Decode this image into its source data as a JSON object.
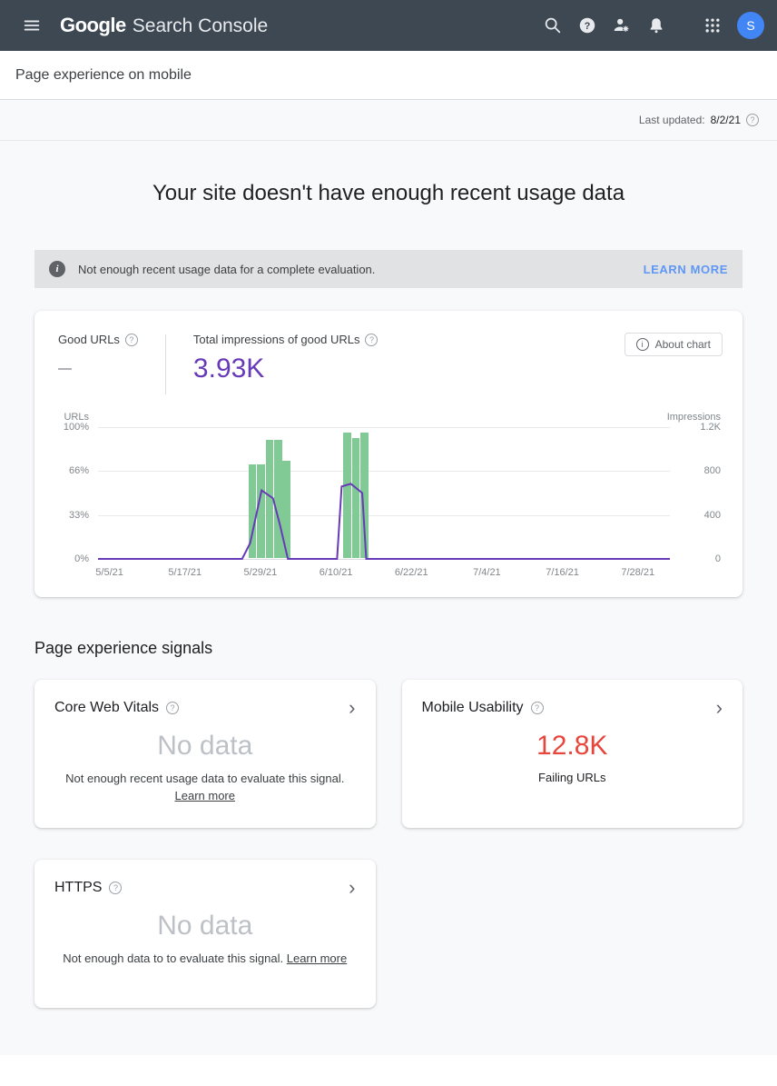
{
  "appbar": {
    "logo_primary": "Google",
    "logo_secondary": "Search Console",
    "avatar_initial": "S"
  },
  "breadcrumb": {
    "title": "Page experience on mobile"
  },
  "meta": {
    "last_updated_label": "Last updated:",
    "last_updated_date": "8/2/21"
  },
  "main": {
    "headline": "Your site doesn't have enough recent usage data",
    "banner": {
      "message": "Not enough recent usage data for a complete evaluation.",
      "action_label": "LEARN MORE"
    },
    "signals_heading": "Page experience signals"
  },
  "chart_card": {
    "good_urls_label": "Good URLs",
    "good_urls_value": "—",
    "impressions_label": "Total impressions of good URLs",
    "impressions_value": "3.93K",
    "about_chart_label": "About chart"
  },
  "chart_data": {
    "type": "bar+line",
    "title": "Good URLs percentage (bars) and impressions of good URLs (line) over time",
    "x_ticks": [
      "5/5/21",
      "5/17/21",
      "5/29/21",
      "6/10/21",
      "6/22/21",
      "7/4/21",
      "7/16/21",
      "7/28/21"
    ],
    "x_tick_positions_pct": [
      2,
      15.2,
      28.4,
      41.6,
      54.8,
      68,
      81.2,
      94.4
    ],
    "left_axis": {
      "title": "URLs",
      "ticks": [
        "100%",
        "66%",
        "33%",
        "0%"
      ],
      "range": [
        0,
        100
      ]
    },
    "right_axis": {
      "title": "Impressions",
      "ticks": [
        "1.2K",
        "800",
        "400",
        "0"
      ],
      "range": [
        0,
        1200
      ]
    },
    "bar_series": {
      "name": "Good URLs (% of URLs)",
      "color": "#81c995",
      "points": [
        {
          "x_pct": 26.3,
          "value_pct": 71
        },
        {
          "x_pct": 27.8,
          "value_pct": 71
        },
        {
          "x_pct": 29.3,
          "value_pct": 90
        },
        {
          "x_pct": 30.8,
          "value_pct": 90
        },
        {
          "x_pct": 32.3,
          "value_pct": 74
        },
        {
          "x_pct": 42.9,
          "value_pct": 95
        },
        {
          "x_pct": 44.4,
          "value_pct": 91
        },
        {
          "x_pct": 45.9,
          "value_pct": 95
        }
      ]
    },
    "line_series": {
      "name": "Impressions of good URLs",
      "color": "#673ab7",
      "points_pct": [
        [
          0,
          0
        ],
        [
          25.2,
          0
        ],
        [
          26.6,
          12
        ],
        [
          28.6,
          52
        ],
        [
          30.6,
          46
        ],
        [
          31.8,
          26
        ],
        [
          33.2,
          0
        ],
        [
          41.8,
          0
        ],
        [
          42.6,
          55
        ],
        [
          44.2,
          57
        ],
        [
          46.2,
          50
        ],
        [
          46.9,
          0
        ],
        [
          100,
          0
        ]
      ]
    },
    "legend_position": "none",
    "grid": true
  },
  "signals": {
    "cards": [
      {
        "title": "Core Web Vitals",
        "value": "No data",
        "value_color": "#bdc1c6",
        "description": "Not enough recent usage data to evaluate this signal.",
        "link_label": "Learn more"
      },
      {
        "title": "Mobile Usability",
        "value": "12.8K",
        "value_color": "#e8453c",
        "description": "Failing URLs"
      },
      {
        "title": "HTTPS",
        "value": "No data",
        "value_color": "#bdc1c6",
        "description": "Not enough data to to evaluate this signal.",
        "link_label": "Learn more"
      }
    ]
  },
  "icons": {
    "help_glyph": "?",
    "info_glyph": "i",
    "chevron_right_glyph": "›"
  },
  "colors": {
    "appbar_bg": "#3d4852",
    "avatar_blue": "#4285f4",
    "link_blue": "#5e97f6",
    "impressions_purple": "#673ab7",
    "bar_green": "#81c995",
    "error_red": "#e8453c",
    "no_data_gray": "#bdc1c6",
    "content_bg": "#f8f9fa",
    "banner_bg": "#e1e2e3"
  }
}
